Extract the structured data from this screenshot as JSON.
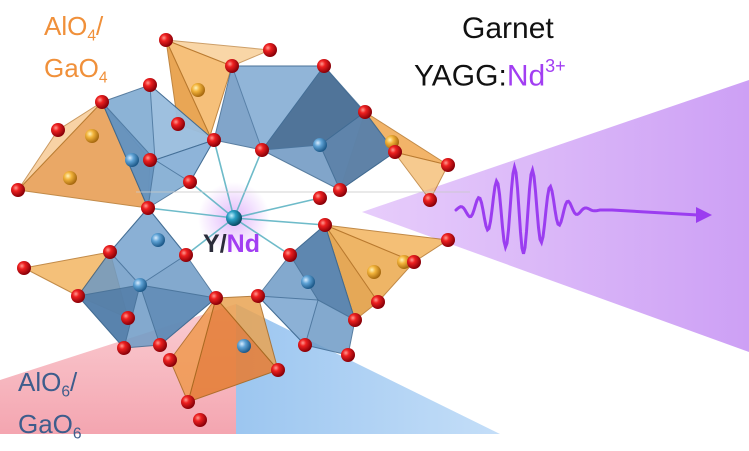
{
  "labels": {
    "tetra_line1_base": "AlO",
    "tetra_line1_sub": "4",
    "tetra_line1_tail": "/",
    "tetra_line2_base": "GaO",
    "tetra_line2_sub": "4",
    "octa_line1_base": "AlO",
    "octa_line1_sub": "6",
    "octa_line1_tail": "/",
    "octa_line2_base": "GaO",
    "octa_line2_sub": "6",
    "title": "Garnet",
    "formula_host": "YAGG:",
    "formula_ion": "Nd",
    "formula_charge": "3+",
    "center_host": "Y",
    "center_sep": "/",
    "center_dopant": "Nd"
  },
  "colors": {
    "tetrahedra": "#f0a850",
    "octahedra": "#6f9cc6",
    "oxygen": "#e0101a",
    "dopant_purple": "#a23ef2",
    "emission_beam": "#d9b3f7",
    "pump_beam_red": "#f7b3bc",
    "pump_beam_blue": "#aacff4"
  },
  "icons": {
    "emission_wave": "oscillating-pulse-arrow-icon"
  }
}
